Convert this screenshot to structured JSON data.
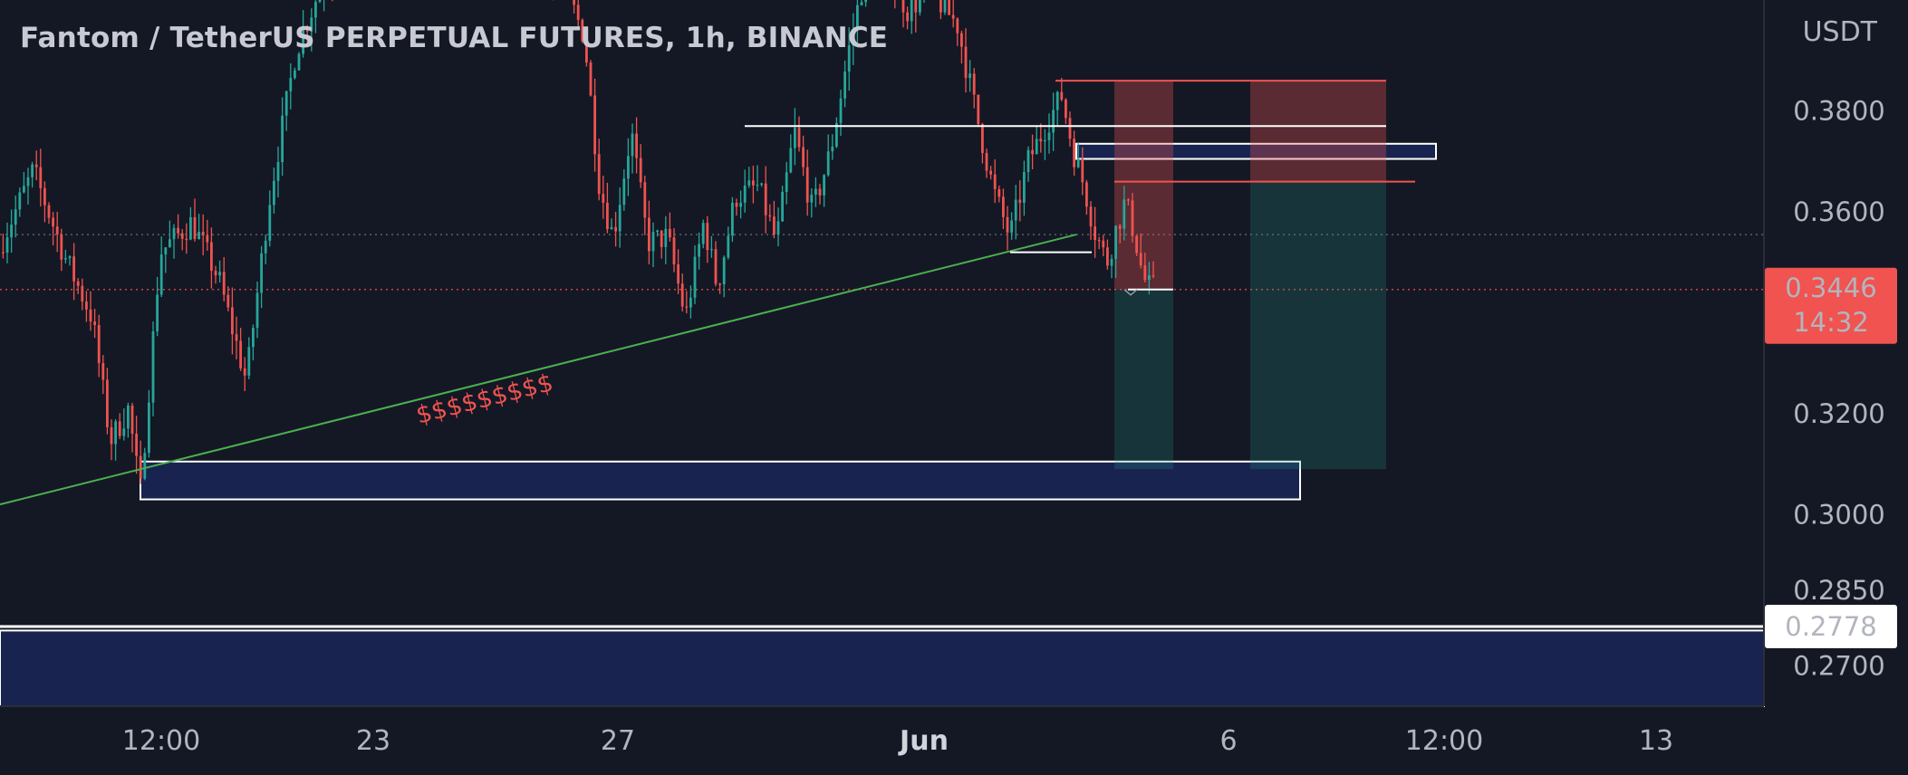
{
  "header": {
    "title": "Fantom / TetherUS PERPETUAL FUTURES, 1h, BINANCE",
    "price_unit": "USDT"
  },
  "chart_data": {
    "type": "candlestick",
    "symbol": "Fantom / TetherUS PERPETUAL FUTURES",
    "interval": "1h",
    "exchange": "BINANCE",
    "ylim": [
      0.262,
      0.402
    ],
    "price_ticks": [
      "0.3800",
      "0.3600",
      "0.3200",
      "0.3000",
      "0.2850",
      "0.2700"
    ],
    "time_ticks": [
      {
        "label": "12:00",
        "x_index": 0,
        "bold": false
      },
      {
        "label": "23",
        "x_index": 1,
        "bold": false
      },
      {
        "label": "27",
        "x_index": 2,
        "bold": false
      },
      {
        "label": "Jun",
        "x_index": 3,
        "bold": true
      },
      {
        "label": "6",
        "x_index": 4,
        "bold": false
      },
      {
        "label": "12:00",
        "x_index": 5,
        "bold": false
      },
      {
        "label": "13",
        "x_index": 6,
        "bold": false
      }
    ],
    "last_price": {
      "value": "0.3446",
      "countdown": "14:32",
      "color": "#f05350"
    },
    "horizontal_level": {
      "value": "0.2778",
      "color": "#ffffff"
    },
    "dotted_level": {
      "value": 0.3555,
      "color": "#5d606b"
    },
    "colors": {
      "up": "#26a69a",
      "down": "#ef5350",
      "background": "#141824",
      "zone": "#18244f"
    },
    "path": [
      [
        0,
        0.352
      ],
      [
        40,
        0.3682
      ],
      [
        75,
        0.351
      ],
      [
        105,
        0.339
      ],
      [
        125,
        0.3145
      ],
      [
        145,
        0.321
      ],
      [
        158,
        0.304
      ],
      [
        180,
        0.352
      ],
      [
        215,
        0.358
      ],
      [
        245,
        0.3465
      ],
      [
        275,
        0.3265
      ],
      [
        300,
        0.362
      ],
      [
        330,
        0.392
      ],
      [
        360,
        0.406
      ],
      [
        400,
        0.407
      ],
      [
        460,
        0.408
      ],
      [
        520,
        0.408
      ],
      [
        575,
        0.4085
      ],
      [
        620,
        0.407
      ],
      [
        648,
        0.395
      ],
      [
        665,
        0.365
      ],
      [
        680,
        0.355
      ],
      [
        700,
        0.376
      ],
      [
        718,
        0.354
      ],
      [
        740,
        0.355
      ],
      [
        760,
        0.339
      ],
      [
        780,
        0.358
      ],
      [
        795,
        0.345
      ],
      [
        815,
        0.363
      ],
      [
        840,
        0.365
      ],
      [
        860,
        0.354
      ],
      [
        880,
        0.376
      ],
      [
        900,
        0.36
      ],
      [
        920,
        0.372
      ],
      [
        940,
        0.392
      ],
      [
        960,
        0.409
      ],
      [
        985,
        0.407
      ],
      [
        1005,
        0.4
      ],
      [
        1030,
        0.404
      ],
      [
        1060,
        0.397
      ],
      [
        1080,
        0.38
      ],
      [
        1100,
        0.364
      ],
      [
        1118,
        0.355
      ],
      [
        1138,
        0.37
      ],
      [
        1160,
        0.378
      ],
      [
        1175,
        0.383
      ],
      [
        1188,
        0.372
      ],
      [
        1200,
        0.365
      ],
      [
        1212,
        0.356
      ],
      [
        1225,
        0.35
      ],
      [
        1235,
        0.3565
      ],
      [
        1245,
        0.362
      ],
      [
        1255,
        0.356
      ],
      [
        1265,
        0.347
      ],
      [
        1272,
        0.345
      ]
    ],
    "trendline": {
      "from": [
        0,
        0.302
      ],
      "to": [
        1188,
        0.3555
      ],
      "color": "#4caf50"
    },
    "annotation": {
      "text": "$$$$$$$$$",
      "color": "#f05350"
    },
    "zones": [
      {
        "from_x": 155,
        "to_x": 1435,
        "top": 0.3105,
        "bottom": 0.303
      },
      {
        "from_x": 1188,
        "to_x": 1585,
        "top": 0.3735,
        "bottom": 0.3705
      },
      {
        "from_x": 0,
        "to_x": 1947,
        "top": 0.277,
        "bottom": 0.262
      }
    ],
    "lines": [
      {
        "from_x": 822,
        "to_x": 1530,
        "value": 0.377,
        "color": "#ffffff"
      },
      {
        "from_x": 1115,
        "to_x": 1205,
        "value": 0.352,
        "color": "#ffffff"
      },
      {
        "from_x": 1165,
        "to_x": 1530,
        "value": 0.386,
        "color": "#f05350"
      },
      {
        "from_x": 1230,
        "to_x": 1562,
        "value": 0.366,
        "color": "#f05350"
      },
      {
        "from_x": 1245,
        "to_x": 1295,
        "value": 0.3446,
        "color": "#ffffff"
      }
    ],
    "positions": [
      {
        "from_x": 1230,
        "to_x": 1295,
        "entry": 0.3446,
        "stop": 0.386,
        "target": 0.309
      },
      {
        "from_x": 1380,
        "to_x": 1530,
        "entry": 0.366,
        "stop": 0.386,
        "target": 0.309
      }
    ]
  }
}
